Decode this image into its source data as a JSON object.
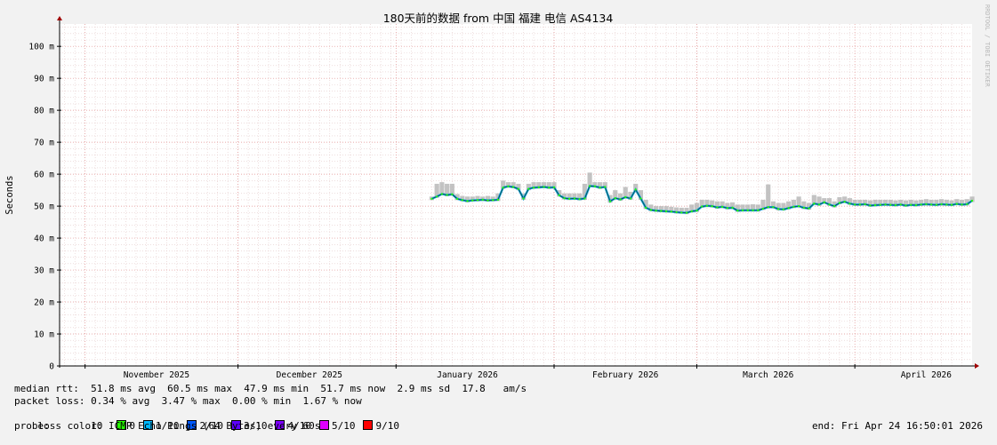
{
  "watermark": "RRDTOOL / TOBI OETIKER",
  "chart_data": {
    "type": "line",
    "title": "180天前的数据 from 中国 福建 电信 AS4134",
    "ylabel": "Seconds",
    "ylim": [
      0,
      107
    ],
    "yticks": [
      {
        "v": 0,
        "label": "0"
      },
      {
        "v": 10,
        "label": "10 m"
      },
      {
        "v": 20,
        "label": "20 m"
      },
      {
        "v": 30,
        "label": "30 m"
      },
      {
        "v": 40,
        "label": "40 m"
      },
      {
        "v": 50,
        "label": "50 m"
      },
      {
        "v": 60,
        "label": "60 m"
      },
      {
        "v": 70,
        "label": "70 m"
      },
      {
        "v": 80,
        "label": "80 m"
      },
      {
        "v": 90,
        "label": "90 m"
      },
      {
        "v": 100,
        "label": "100 m"
      }
    ],
    "xlim": [
      "2025-10-27",
      "2026-04-24"
    ],
    "month_starts": [
      "2025-11-01",
      "2025-12-01",
      "2026-01-01",
      "2026-02-01",
      "2026-03-01",
      "2026-04-01"
    ],
    "xticks": [
      {
        "date": "2025-11-15",
        "label": "November 2025"
      },
      {
        "date": "2025-12-15",
        "label": "December 2025"
      },
      {
        "date": "2026-01-15",
        "label": "January 2026"
      },
      {
        "date": "2026-02-15",
        "label": "February 2026"
      },
      {
        "date": "2026-03-15",
        "label": "March 2026"
      },
      {
        "date": "2026-04-15",
        "label": "April 2026"
      }
    ],
    "grid": true,
    "series": [
      {
        "x": [
          "2026-01-08",
          "2026-01-09",
          "2026-01-10",
          "2026-01-11",
          "2026-01-12",
          "2026-01-13",
          "2026-01-14",
          "2026-01-15",
          "2026-01-16",
          "2026-01-17",
          "2026-01-18",
          "2026-01-19",
          "2026-01-20",
          "2026-01-21",
          "2026-01-22",
          "2026-01-23",
          "2026-01-24",
          "2026-01-25",
          "2026-01-26",
          "2026-01-27",
          "2026-01-28",
          "2026-01-29",
          "2026-01-30",
          "2026-01-31",
          "2026-02-01",
          "2026-02-02",
          "2026-02-03",
          "2026-02-04",
          "2026-02-05",
          "2026-02-06",
          "2026-02-07",
          "2026-02-08",
          "2026-02-09",
          "2026-02-10",
          "2026-02-11",
          "2026-02-12",
          "2026-02-13",
          "2026-02-14",
          "2026-02-15",
          "2026-02-16",
          "2026-02-17",
          "2026-02-18",
          "2026-02-19",
          "2026-02-20",
          "2026-02-21",
          "2026-02-22",
          "2026-02-23",
          "2026-02-24",
          "2026-02-25",
          "2026-02-26",
          "2026-02-27",
          "2026-02-28",
          "2026-03-01",
          "2026-03-02",
          "2026-03-03",
          "2026-03-04",
          "2026-03-05",
          "2026-03-06",
          "2026-03-07",
          "2026-03-08",
          "2026-03-09",
          "2026-03-10",
          "2026-03-11",
          "2026-03-12",
          "2026-03-13",
          "2026-03-14",
          "2026-03-15",
          "2026-03-16",
          "2026-03-17",
          "2026-03-18",
          "2026-03-19",
          "2026-03-20",
          "2026-03-21",
          "2026-03-22",
          "2026-03-23",
          "2026-03-24",
          "2026-03-25",
          "2026-03-26",
          "2026-03-27",
          "2026-03-28",
          "2026-03-29",
          "2026-03-30",
          "2026-03-31",
          "2026-04-01",
          "2026-04-02",
          "2026-04-03",
          "2026-04-04",
          "2026-04-05",
          "2026-04-06",
          "2026-04-07",
          "2026-04-08",
          "2026-04-09",
          "2026-04-10",
          "2026-04-11",
          "2026-04-12",
          "2026-04-13",
          "2026-04-14",
          "2026-04-15",
          "2026-04-16",
          "2026-04-17",
          "2026-04-18",
          "2026-04-19",
          "2026-04-20",
          "2026-04-21",
          "2026-04-22",
          "2026-04-23",
          "2026-04-24"
        ],
        "y": [
          52.3,
          53.0,
          53.8,
          53.5,
          53.7,
          52.3,
          51.9,
          51.6,
          51.8,
          51.9,
          52.0,
          51.8,
          51.9,
          52.0,
          55.8,
          56.2,
          56.0,
          55.4,
          52.4,
          55.4,
          55.8,
          55.9,
          56.0,
          55.8,
          55.9,
          53.4,
          52.5,
          52.3,
          52.4,
          52.2,
          52.4,
          56.3,
          56.2,
          55.8,
          56.0,
          51.5,
          52.5,
          52.1,
          52.8,
          52.4,
          55.2,
          52.4,
          49.5,
          48.8,
          48.6,
          48.5,
          48.4,
          48.3,
          48.1,
          48.0,
          47.9,
          48.4,
          48.6,
          49.9,
          50.1,
          50.0,
          49.6,
          49.8,
          49.4,
          49.5,
          48.6,
          48.7,
          48.7,
          48.7,
          48.7,
          49.2,
          49.7,
          49.7,
          49.1,
          49.0,
          49.4,
          49.8,
          50.0,
          49.5,
          49.3,
          50.8,
          50.5,
          51.2,
          50.5,
          50.0,
          51.0,
          51.4,
          50.8,
          50.5,
          50.5,
          50.6,
          50.2,
          50.3,
          50.4,
          50.5,
          50.4,
          50.3,
          50.5,
          50.2,
          50.4,
          50.3,
          50.5,
          50.6,
          50.5,
          50.4,
          50.6,
          50.5,
          50.4,
          50.7,
          50.5,
          50.6,
          51.7
        ],
        "y_max": [
          53.0,
          57.0,
          57.5,
          57.0,
          57.0,
          53.8,
          53.2,
          53.0,
          53.0,
          53.2,
          53.0,
          53.2,
          53.0,
          54.0,
          58.0,
          57.5,
          57.5,
          57.0,
          54.0,
          57.0,
          57.5,
          57.5,
          57.5,
          57.5,
          57.5,
          55.0,
          54.0,
          54.0,
          54.0,
          54.0,
          57.0,
          60.5,
          57.5,
          57.5,
          57.5,
          53.5,
          55.0,
          54.0,
          56.0,
          54.5,
          57.0,
          55.0,
          52.0,
          50.5,
          50.0,
          50.0,
          50.0,
          49.8,
          49.6,
          49.5,
          49.5,
          50.5,
          51.0,
          52.0,
          52.0,
          51.8,
          51.5,
          51.5,
          51.0,
          51.2,
          50.5,
          50.5,
          50.5,
          50.6,
          50.5,
          52.0,
          56.8,
          51.5,
          51.0,
          51.0,
          51.5,
          52.0,
          53.0,
          51.5,
          51.0,
          53.5,
          53.0,
          52.5,
          52.5,
          51.5,
          52.8,
          53.0,
          52.5,
          52.0,
          52.0,
          52.0,
          51.8,
          52.0,
          52.0,
          52.0,
          52.0,
          51.8,
          52.0,
          51.8,
          52.0,
          51.8,
          52.0,
          52.2,
          52.0,
          52.0,
          52.2,
          52.0,
          51.8,
          52.2,
          52.0,
          52.2,
          53.0
        ]
      }
    ],
    "loss_colors": [
      {
        "label": "0",
        "color": "#26ff00"
      },
      {
        "label": "1/10",
        "color": "#00b8ff"
      },
      {
        "label": "2/10",
        "color": "#0059ff"
      },
      {
        "label": "3/10",
        "color": "#5e00ff"
      },
      {
        "label": "4/10",
        "color": "#7e00ff"
      },
      {
        "label": "5/10",
        "color": "#dd00ff"
      },
      {
        "label": "9/10",
        "color": "#ff0000"
      }
    ]
  },
  "legend": {
    "median_rtt": "median rtt:  51.8 ms avg  60.5 ms max  47.9 ms min  51.7 ms now  2.9 ms sd  17.8   am/s",
    "packet_loss": "packet loss: 0.34 % avg  3.47 % max  0.00 % min  1.67 % now",
    "loss_color_label": "loss color:",
    "probe": "probe:       10 ICMP Echo Pings (64 Bytes) every 60s",
    "end": "end: Fri Apr 24 16:50:01 2026"
  }
}
